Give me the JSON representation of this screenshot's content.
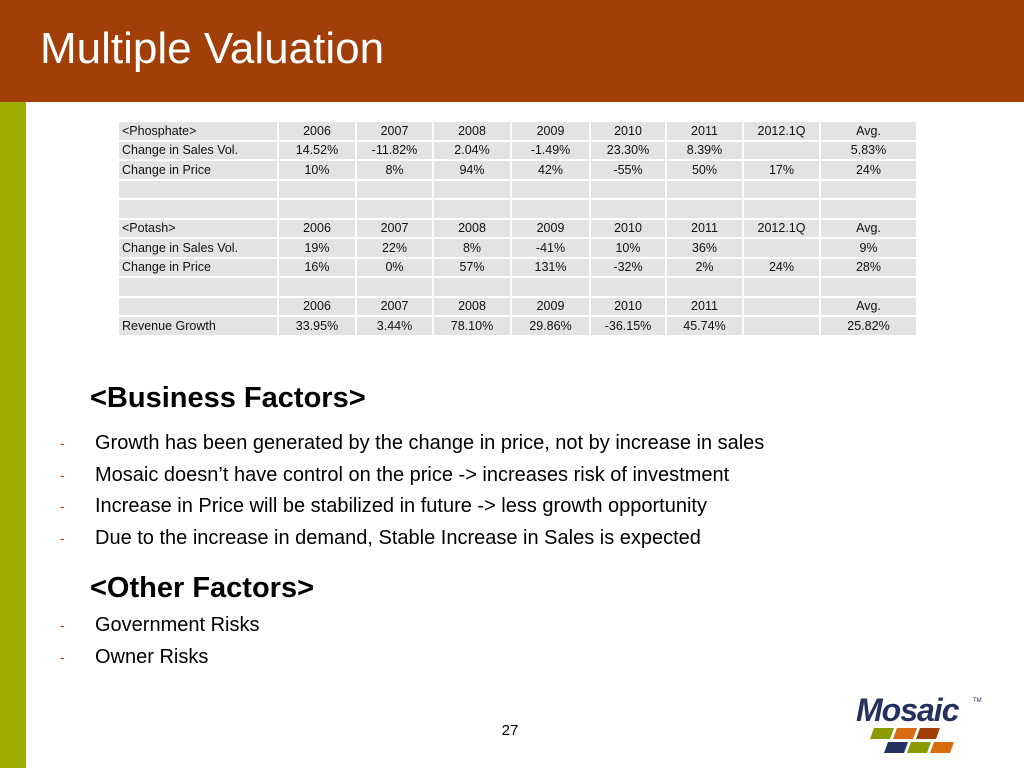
{
  "slide": {
    "title": "Multiple Valuation",
    "page_number": "27"
  },
  "table": {
    "rows": [
      [
        "<Phosphate>",
        "2006",
        "2007",
        "2008",
        "2009",
        "2010",
        "2011",
        "2012.1Q",
        "Avg."
      ],
      [
        "Change in Sales Vol.",
        "14.52%",
        "-11.82%",
        "2.04%",
        "-1.49%",
        "23.30%",
        "8.39%",
        "",
        "5.83%"
      ],
      [
        "Change in Price",
        "10%",
        "8%",
        "94%",
        "42%",
        "-55%",
        "50%",
        "17%",
        "24%"
      ],
      [
        "",
        "",
        "",
        "",
        "",
        "",
        "",
        "",
        ""
      ],
      [
        "",
        "",
        "",
        "",
        "",
        "",
        "",
        "",
        ""
      ],
      [
        "<Potash>",
        "2006",
        "2007",
        "2008",
        "2009",
        "2010",
        "2011",
        "2012.1Q",
        "Avg."
      ],
      [
        "Change in Sales Vol.",
        "19%",
        "22%",
        "8%",
        "-41%",
        "10%",
        "36%",
        "",
        "9%"
      ],
      [
        "Change in Price",
        "16%",
        "0%",
        "57%",
        "131%",
        "-32%",
        "2%",
        "24%",
        "28%"
      ],
      [
        "",
        "",
        "",
        "",
        "",
        "",
        "",
        "",
        ""
      ],
      [
        "",
        "2006",
        "2007",
        "2008",
        "2009",
        "2010",
        "2011",
        "",
        "Avg."
      ],
      [
        "Revenue Growth",
        "33.95%",
        "3.44%",
        "78.10%",
        "29.86%",
        "-36.15%",
        "45.74%",
        "",
        "25.82%"
      ]
    ]
  },
  "business_factors": {
    "heading": "<Business Factors>",
    "bullet_marker": "-",
    "items": [
      "Growth has been generated by the change in price, not by increase in sales",
      "Mosaic doesn’t have control on the price -> increases risk of investment",
      "Increase in Price will be stabilized in future -> less growth opportunity",
      "Due to the increase in demand, Stable Increase in Sales is expected"
    ]
  },
  "other_factors": {
    "heading": "<Other Factors>",
    "bullet_marker": "-",
    "items": [
      "Government Risks",
      "Owner Risks"
    ]
  },
  "logo": {
    "text": "Mosaic",
    "trademark": "TM",
    "colors": {
      "text": "#24305e",
      "tile_green": "#8a9a00",
      "tile_orange": "#d86a10",
      "tile_brown": "#a23e08",
      "tile_navy": "#24305e"
    }
  },
  "theme": {
    "title_bar": "#a23e08",
    "left_stripe": "#a0ad00",
    "cell_bg": "#e3e3e3"
  }
}
